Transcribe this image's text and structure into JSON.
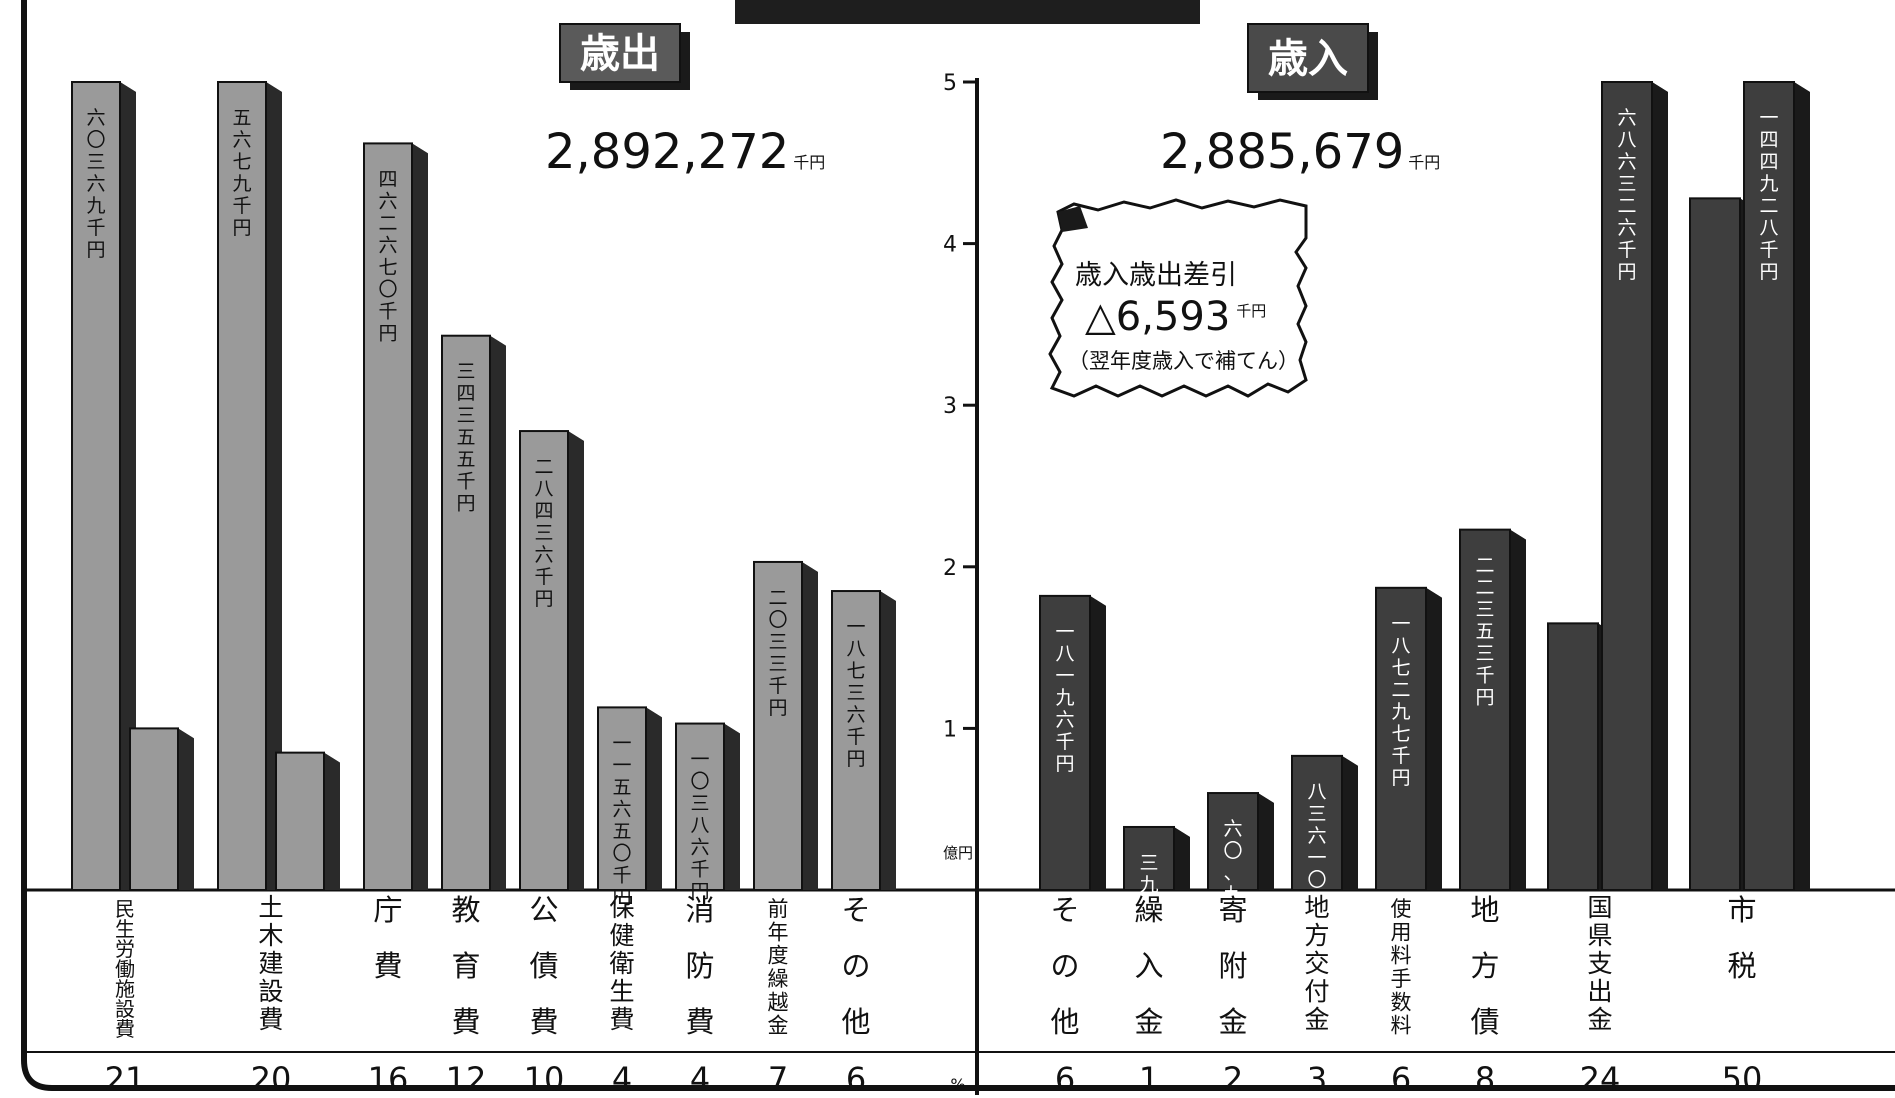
{
  "colors": {
    "expenditure_front": "#9a9a9a",
    "expenditure_side": "#2a2a2a",
    "revenue_front": "#3e3e3e",
    "revenue_side": "#1a1a1a",
    "ink": "#111111"
  },
  "chart_data": {
    "type": "bar",
    "axis": {
      "ticks": [
        "1",
        "2",
        "3",
        "4",
        "5"
      ],
      "unit": "億円",
      "ylim": [
        0,
        5
      ]
    },
    "percent_label": "%",
    "expenditure": {
      "title": "歳出",
      "total": "2,892,272",
      "total_unit": "千円",
      "categories": [
        {
          "label": "民生労働施設費",
          "percent": "21",
          "values": [
            5.0,
            1.0
          ],
          "data_labels": [
            "六〇三六九千円",
            ""
          ]
        },
        {
          "label": "土木建設費",
          "percent": "20",
          "values": [
            5.0,
            0.85
          ],
          "data_labels": [
            "五六七九千円",
            ""
          ]
        },
        {
          "label": "庁費",
          "percent": "16",
          "values": [
            4.62
          ],
          "data_labels": [
            "四六二六七〇千円"
          ]
        },
        {
          "label": "教育費",
          "percent": "12",
          "values": [
            3.43
          ],
          "data_labels": [
            "三四三五五千円"
          ]
        },
        {
          "label": "公債費",
          "percent": "10",
          "values": [
            2.84
          ],
          "data_labels": [
            "二八四三六千円"
          ]
        },
        {
          "label": "保健衛生費",
          "percent": "4",
          "values": [
            1.13
          ],
          "data_labels": [
            "一一五六五〇千円"
          ]
        },
        {
          "label": "消防費",
          "percent": "4",
          "values": [
            1.03
          ],
          "data_labels": [
            "一〇三八六千円"
          ]
        },
        {
          "label": "前年度繰越金",
          "percent": "7",
          "values": [
            2.03
          ],
          "data_labels": [
            "二〇三三千円"
          ]
        },
        {
          "label": "その他",
          "percent": "6",
          "values": [
            1.85
          ],
          "data_labels": [
            "一八七三六千円"
          ]
        }
      ]
    },
    "revenue": {
      "title": "歳入",
      "total": "2,885,679",
      "total_unit": "千円",
      "note": {
        "line1": "歳入歳出差引",
        "amount": "△6,593",
        "amount_unit": "千円",
        "line3": "（翌年度歳入で補てん）"
      },
      "categories": [
        {
          "label": "その他",
          "percent": "6",
          "values": [
            1.82
          ],
          "data_labels": [
            "一八一九六千円"
          ]
        },
        {
          "label": "繰入金",
          "percent": "1",
          "values": [
            0.39
          ],
          "data_labels": [
            "三九五五四千円"
          ]
        },
        {
          "label": "寄附金",
          "percent": "2",
          "values": [
            0.6
          ],
          "data_labels": [
            "六〇、九七六千円"
          ]
        },
        {
          "label": "地方交付金",
          "percent": "3",
          "values": [
            0.83
          ],
          "data_labels": [
            "八三六一〇千円"
          ]
        },
        {
          "label": "使用料手数料",
          "percent": "6",
          "values": [
            1.87
          ],
          "data_labels": [
            "一八七二九七千円"
          ]
        },
        {
          "label": "地方債",
          "percent": "8",
          "values": [
            2.23
          ],
          "data_labels": [
            "二二三五三千円"
          ]
        },
        {
          "label": "国県支出金",
          "percent": "24",
          "values": [
            1.65,
            5.0
          ],
          "data_labels": [
            "",
            "六八六三二六千円"
          ]
        },
        {
          "label": "市税",
          "percent": "50",
          "values": [
            4.28,
            5.0
          ],
          "data_labels": [
            "",
            "一四四九二八千円"
          ]
        }
      ]
    }
  }
}
